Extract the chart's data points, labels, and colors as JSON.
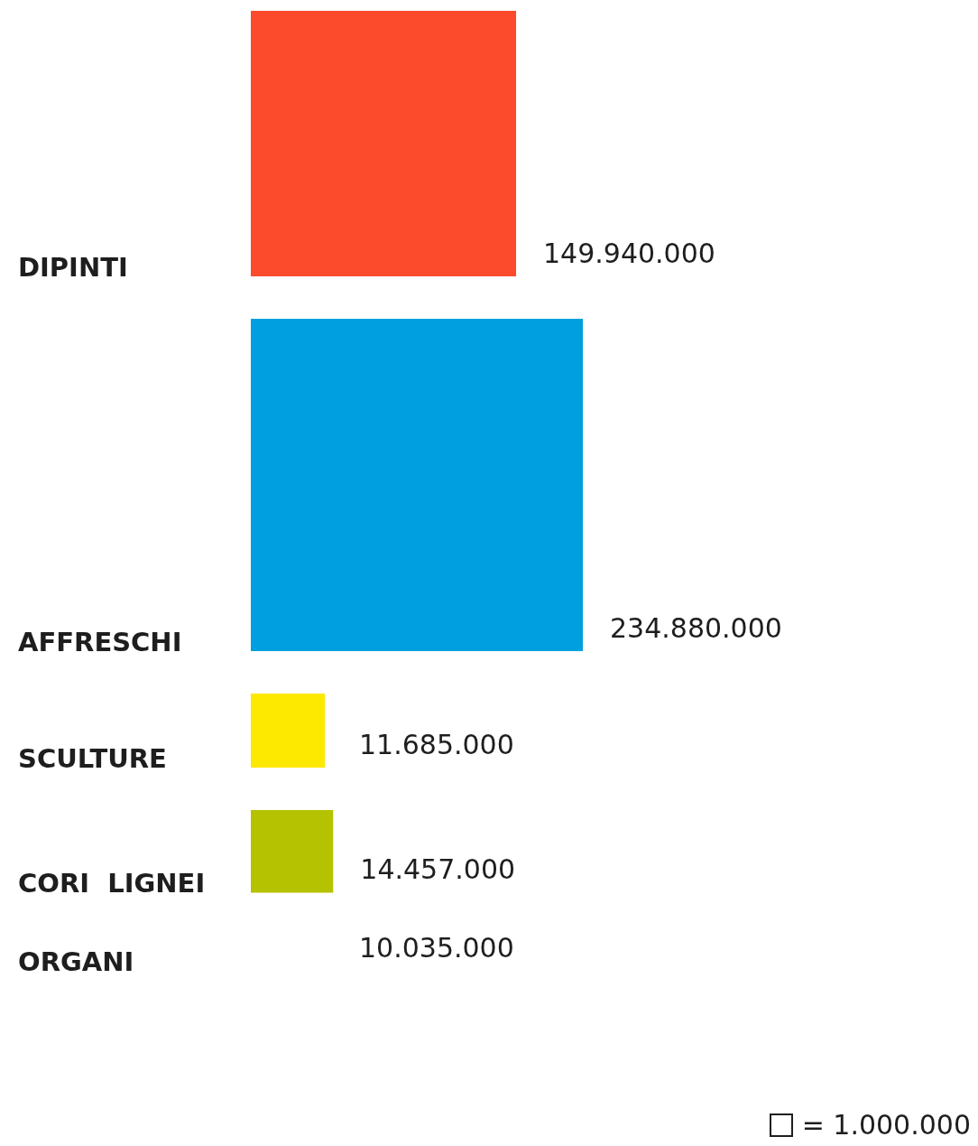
{
  "chart_data": {
    "type": "other",
    "categories": [
      "DIPINTI",
      "AFFRESCHI",
      "SCULTURE",
      "CORI  LIGNEI",
      "ORGANI"
    ],
    "values": [
      149940000,
      234880000,
      11685000,
      14457000,
      10035000
    ],
    "value_labels": [
      "149.940.000",
      "234.880.000",
      "11.685.000",
      "14.457.000",
      "10.035.000"
    ],
    "colors": [
      "#fc4a2c",
      "#009fdf",
      "#fde800",
      "#b5c200",
      null
    ],
    "annotations": [
      "= 1.000.000"
    ]
  }
}
